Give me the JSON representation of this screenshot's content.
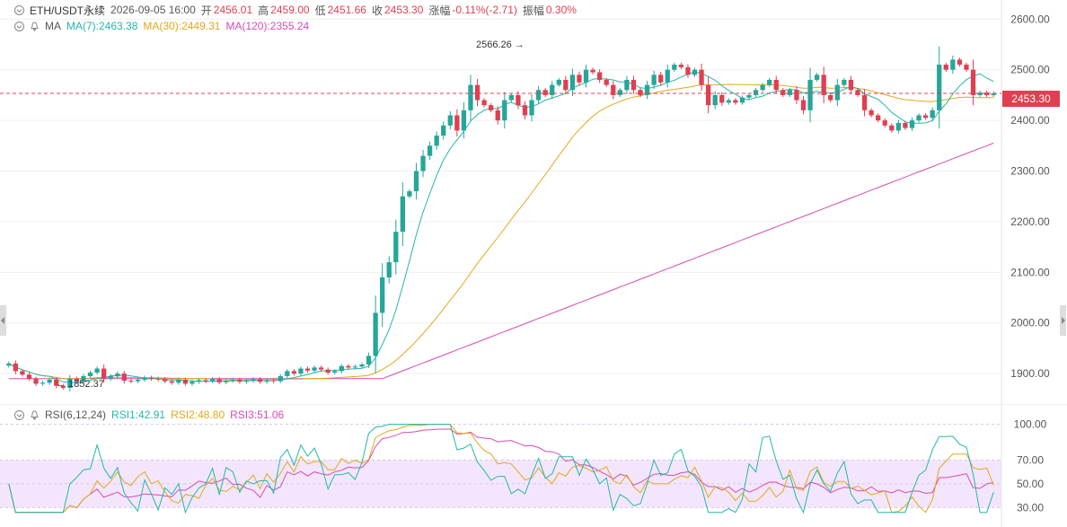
{
  "header": {
    "symbol": "ETH/USDT永续",
    "datetime": "2026-09-05 16:00",
    "open_label": "开",
    "open": "2456.01",
    "high_label": "高",
    "high": "2459.00",
    "low_label": "低",
    "low": "2451.66",
    "close_label": "收",
    "close": "2453.30",
    "change_label": "涨幅",
    "change": "-0.11%(-2.71)",
    "amp_label": "振幅",
    "amp": "0.30%"
  },
  "ma_legend": {
    "title": "MA",
    "ma7": "MA(7):2463.38",
    "ma30": "MA(30):2449.31",
    "ma120": "MA(120):2355.24"
  },
  "rsi_legend": {
    "title": "RSI(6,12,24)",
    "rsi1": "RSI1:42.91",
    "rsi2": "RSI2:48.80",
    "rsi3": "RSI3:51.06"
  },
  "annotations": {
    "high_mark": "2566.26 →",
    "low_mark": "← 1852.37"
  },
  "current_price": "2453.30",
  "colors": {
    "up": "#26a69a",
    "down": "#e03f51",
    "ma7": "#22b8a7",
    "ma30": "#e3a81a",
    "ma120": "#d94bb0",
    "rsi_band": "#f1e3fb"
  },
  "chart_data": [
    {
      "type": "candlestick",
      "title": "ETH/USDT永续",
      "ylim": [
        1840,
        2620
      ],
      "y_ticks": [
        "2600.00",
        "2500.00",
        "2400.00",
        "2300.00",
        "2200.00",
        "2100.00",
        "2000.00",
        "1900.00"
      ],
      "current": 2453.3,
      "high_point": 2566.26,
      "low_point": 1852.37,
      "closes": [
        1920,
        1905,
        1898,
        1890,
        1880,
        1882,
        1888,
        1876,
        1872,
        1890,
        1885,
        1895,
        1902,
        1910,
        1890,
        1895,
        1900,
        1886,
        1885,
        1888,
        1892,
        1890,
        1889,
        1885,
        1882,
        1888,
        1880,
        1884,
        1887,
        1885,
        1889,
        1883,
        1886,
        1888,
        1884,
        1886,
        1889,
        1884,
        1887,
        1885,
        1895,
        1905,
        1900,
        1910,
        1906,
        1912,
        1908,
        1902,
        1905,
        1915,
        1912,
        1914,
        1918,
        1935,
        2020,
        2090,
        2120,
        2180,
        2250,
        2260,
        2300,
        2330,
        2350,
        2370,
        2390,
        2410,
        2380,
        2420,
        2470,
        2440,
        2430,
        2420,
        2400,
        2440,
        2450,
        2430,
        2410,
        2440,
        2460,
        2450,
        2470,
        2480,
        2460,
        2490,
        2475,
        2500,
        2495,
        2480,
        2470,
        2450,
        2460,
        2480,
        2460,
        2450,
        2470,
        2490,
        2475,
        2500,
        2510,
        2505,
        2490,
        2500,
        2470,
        2430,
        2450,
        2435,
        2440,
        2435,
        2445,
        2450,
        2460,
        2470,
        2480,
        2460,
        2450,
        2460,
        2440,
        2420,
        2480,
        2490,
        2450,
        2440,
        2470,
        2480,
        2460,
        2450,
        2420,
        2410,
        2400,
        2390,
        2380,
        2395,
        2385,
        2400,
        2410,
        2405,
        2420,
        2510,
        2500,
        2520,
        2510,
        2500,
        2450,
        2455,
        2450,
        2453.3
      ]
    },
    {
      "type": "line",
      "title": "RSI(6,12,24)",
      "ylim": [
        25,
        105
      ],
      "y_ticks": [
        "100.00",
        "70.00",
        "50.00",
        "30.00"
      ],
      "series": [
        {
          "name": "RSI1",
          "value": 42.91
        },
        {
          "name": "RSI2",
          "value": 48.8
        },
        {
          "name": "RSI3",
          "value": 51.06
        }
      ]
    }
  ]
}
